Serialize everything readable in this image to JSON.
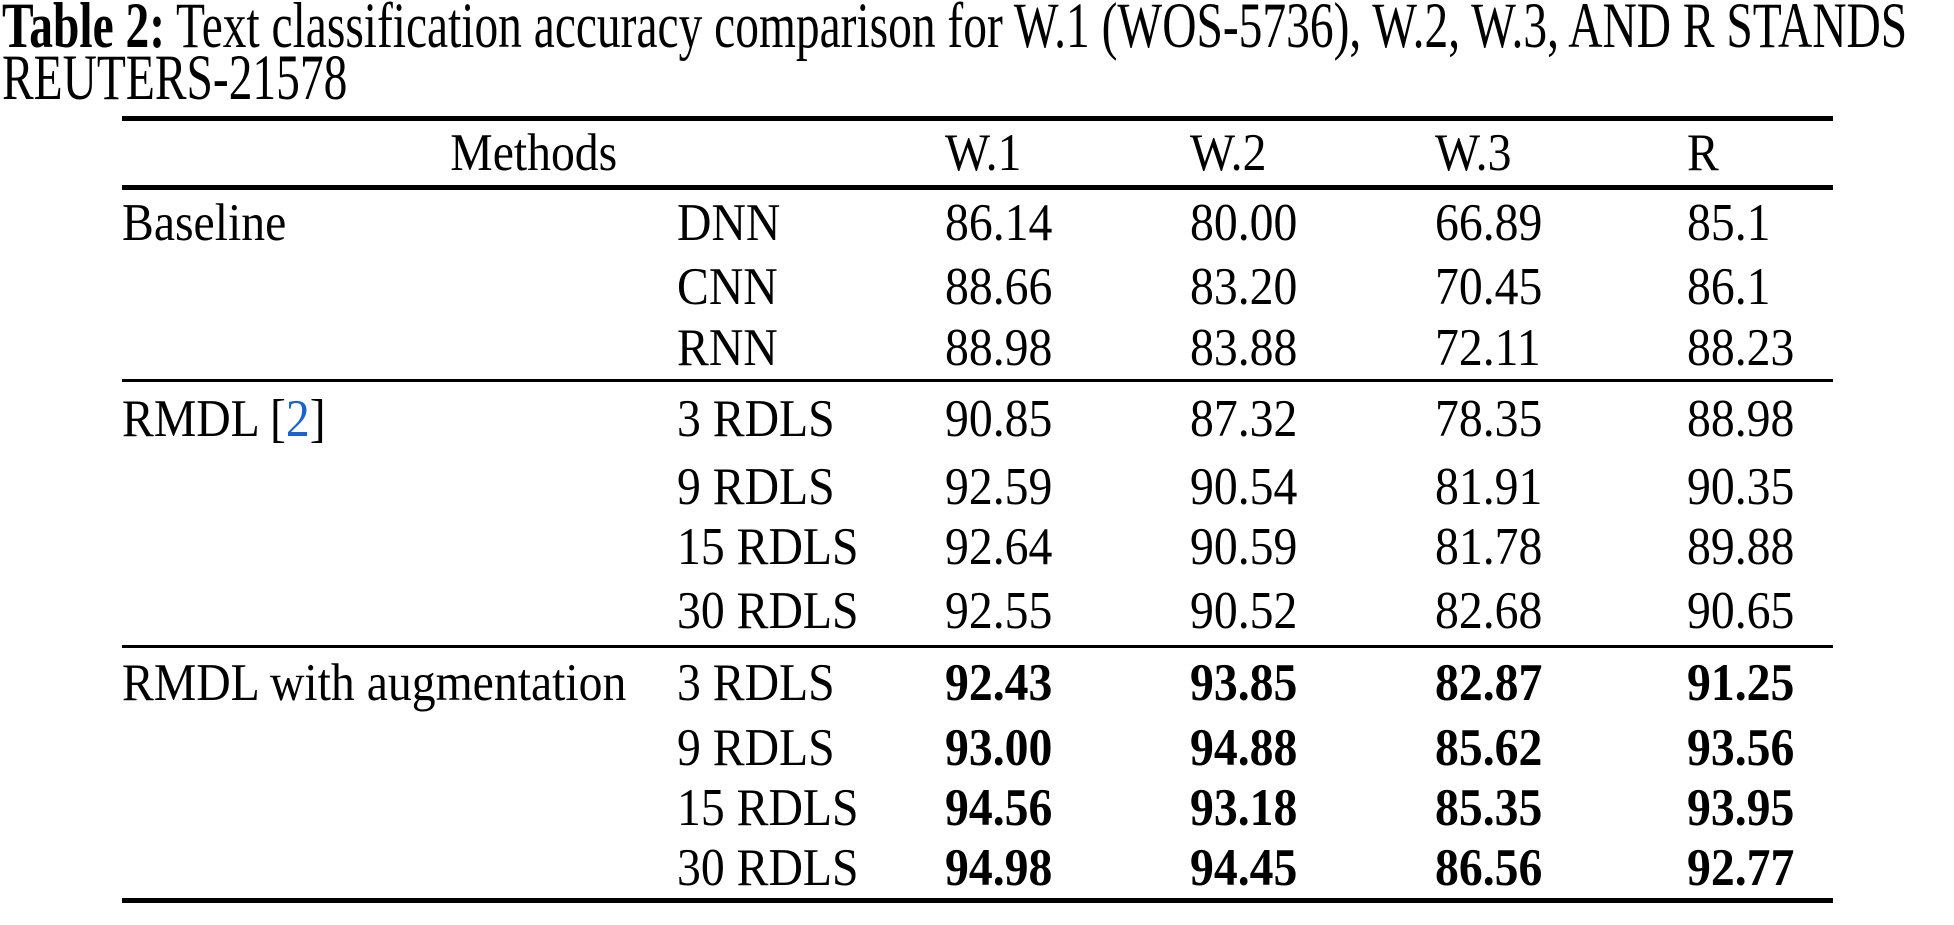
{
  "caption": {
    "label": "Table 2:",
    "line1": "Text classification accuracy comparison for W.1 (WOS-5736), W.2, W.3, AND R STANDS",
    "line2": "REUTERS-21578"
  },
  "table": {
    "header": {
      "methods": "Methods",
      "cols": [
        "W.1",
        "W.2",
        "W.3",
        "R"
      ]
    },
    "sections": [
      {
        "name": "Baseline",
        "values_bold": false,
        "rows": [
          {
            "group": "Baseline",
            "method": "DNN",
            "values": [
              "86.14",
              "80.00",
              "66.89",
              "85.1"
            ]
          },
          {
            "group": "",
            "method": "CNN",
            "values": [
              "88.66",
              "83.20",
              "70.45",
              "86.1"
            ]
          },
          {
            "group": "",
            "method": "RNN",
            "values": [
              "88.98",
              "83.88",
              "72.11",
              "88.23"
            ]
          }
        ]
      },
      {
        "name": "RMDL",
        "values_bold": false,
        "citation_open": " [",
        "citation": "2",
        "citation_close": "]",
        "rows": [
          {
            "group": "RMDL",
            "method": "3 RDLS",
            "values": [
              "90.85",
              "87.32",
              "78.35",
              "88.98"
            ]
          },
          {
            "group": "",
            "method": "9 RDLS",
            "values": [
              "92.59",
              "90.54",
              "81.91",
              "90.35"
            ]
          },
          {
            "group": "",
            "method": "15 RDLS",
            "values": [
              "92.64",
              "90.59",
              "81.78",
              "89.88"
            ]
          },
          {
            "group": "",
            "method": "30 RDLS",
            "values": [
              "92.55",
              "90.52",
              "82.68",
              "90.65"
            ]
          }
        ]
      },
      {
        "name": "RMDL with augmentation",
        "values_bold": true,
        "rows": [
          {
            "group": "RMDL with augmentation",
            "method": "3 RDLS",
            "values": [
              "92.43",
              "93.85",
              "82.87",
              "91.25"
            ]
          },
          {
            "group": "",
            "method": "9 RDLS",
            "values": [
              "93.00",
              "94.88",
              "85.62",
              "93.56"
            ]
          },
          {
            "group": "",
            "method": "15 RDLS",
            "values": [
              "94.56",
              "93.18",
              "85.35",
              "93.95"
            ]
          },
          {
            "group": "",
            "method": "30 RDLS",
            "values": [
              "94.98",
              "94.45",
              "86.56",
              "92.77"
            ]
          }
        ]
      }
    ]
  },
  "colors": {
    "text": "#000000",
    "rule": "#000000",
    "citation_link": "#1b64d0",
    "background": "#ffffff"
  }
}
